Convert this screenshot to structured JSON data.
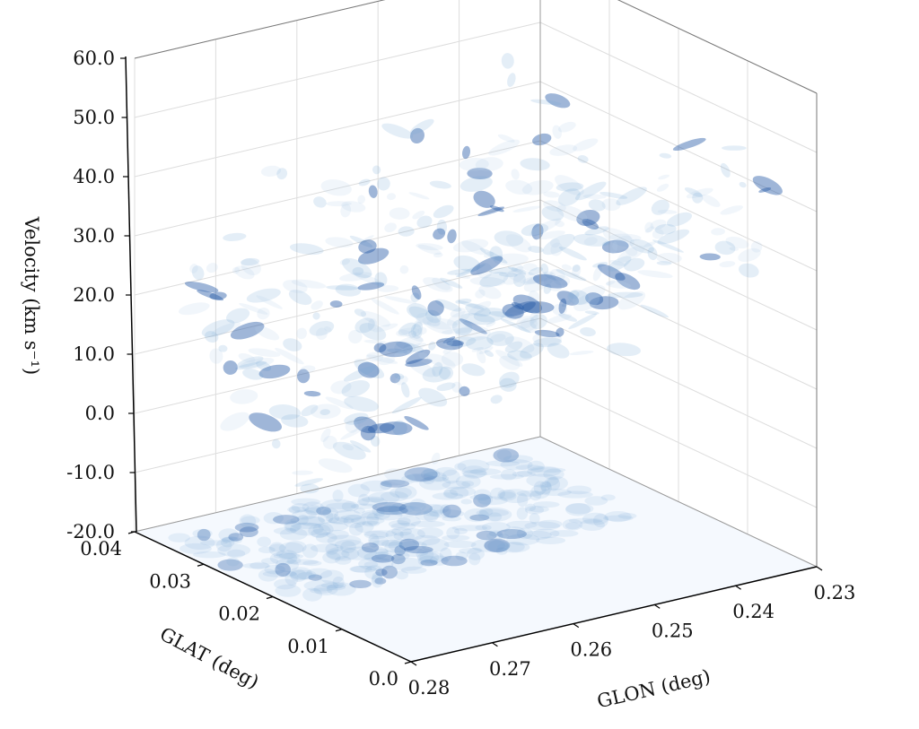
{
  "chart_data": {
    "type": "3d-volume",
    "title": "",
    "axes": {
      "z": {
        "label": "Velocity (km s⁻¹)",
        "range": [
          -20,
          60
        ],
        "ticks": [
          -20,
          -10,
          0,
          10,
          20,
          30,
          40,
          50,
          60
        ],
        "tick_labels": [
          "-20.0",
          "-10.0",
          "0.0",
          "10.0",
          "20.0",
          "30.0",
          "40.0",
          "50.0",
          "60.0"
        ]
      },
      "y": {
        "label": "GLAT (deg)",
        "range": [
          0.0,
          0.04
        ],
        "ticks": [
          0.0,
          0.01,
          0.02,
          0.03,
          0.04
        ],
        "tick_labels": [
          "0.0",
          "0.01",
          "0.02",
          "0.03",
          "0.04"
        ]
      },
      "x": {
        "label": "GLON (deg)",
        "range": [
          0.28,
          0.23
        ],
        "ticks": [
          0.28,
          0.27,
          0.26,
          0.25,
          0.24,
          0.23
        ],
        "tick_labels": [
          "0.28",
          "0.27",
          "0.26",
          "0.25",
          "0.24",
          "0.23"
        ]
      }
    },
    "grid": true,
    "colormap": "Blues",
    "colors": {
      "low": "#f3f8fd",
      "mid": "#7aaad6",
      "high": "#2a5ea8"
    },
    "floor_projection": true
  }
}
